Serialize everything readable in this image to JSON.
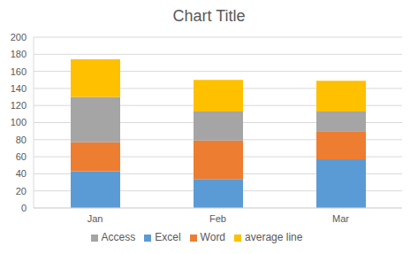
{
  "chart_data": {
    "type": "bar",
    "title": "Chart Title",
    "categories": [
      "Jan",
      "Feb",
      "Mar"
    ],
    "series": [
      {
        "name": "Excel",
        "color": "#5b9bd5",
        "values": [
          43,
          34,
          57
        ]
      },
      {
        "name": "Word",
        "color": "#ed7d31",
        "values": [
          34,
          45,
          33
        ]
      },
      {
        "name": "Access",
        "color": "#a5a5a5",
        "values": [
          53,
          34,
          23
        ]
      },
      {
        "name": "average line",
        "color": "#ffc000",
        "values": [
          44,
          37,
          36
        ]
      }
    ],
    "ylim": [
      0,
      200
    ],
    "yticks": [
      0,
      20,
      40,
      60,
      80,
      100,
      120,
      140,
      160,
      180,
      200
    ],
    "grid": true,
    "stacked": true,
    "legend": "bottom"
  }
}
